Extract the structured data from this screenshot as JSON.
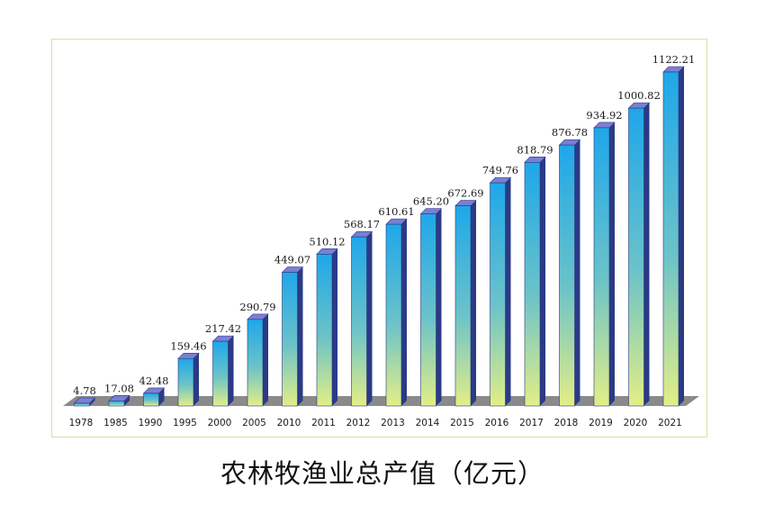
{
  "chart_data": {
    "type": "bar",
    "title": "农林牧渔业总产值（亿元）",
    "xlabel": "",
    "ylabel": "",
    "ylim": [
      0,
      1200
    ],
    "grid": false,
    "legend": "none",
    "categories": [
      "1978",
      "1985",
      "1990",
      "1995",
      "2000",
      "2005",
      "2010",
      "2011",
      "2012",
      "2013",
      "2014",
      "2015",
      "2016",
      "2017",
      "2018",
      "2019",
      "2020",
      "2021"
    ],
    "values": [
      4.78,
      17.08,
      42.48,
      159.46,
      217.42,
      290.79,
      449.07,
      510.12,
      568.17,
      610.61,
      645.2,
      672.69,
      749.76,
      818.79,
      876.78,
      934.92,
      1000.82,
      1122.21
    ],
    "value_labels": [
      "4.78",
      "17.08",
      "42.48",
      "159.46",
      "217.42",
      "290.79",
      "449.07",
      "510.12",
      "568.17",
      "610.61",
      "645.20",
      "672.69",
      "749.76",
      "818.79",
      "876.78",
      "934.92",
      "1000.82",
      "1122.21"
    ]
  },
  "colors": {
    "bar_top": "#1ea7ea",
    "bar_mid": "#6cc3c8",
    "bar_bottom": "#e3ee86",
    "bar_side": "#2b3a86",
    "bar_cap": "#7a7fd4",
    "floor": "#8a8a8a",
    "frame": "#d6e3a4"
  }
}
